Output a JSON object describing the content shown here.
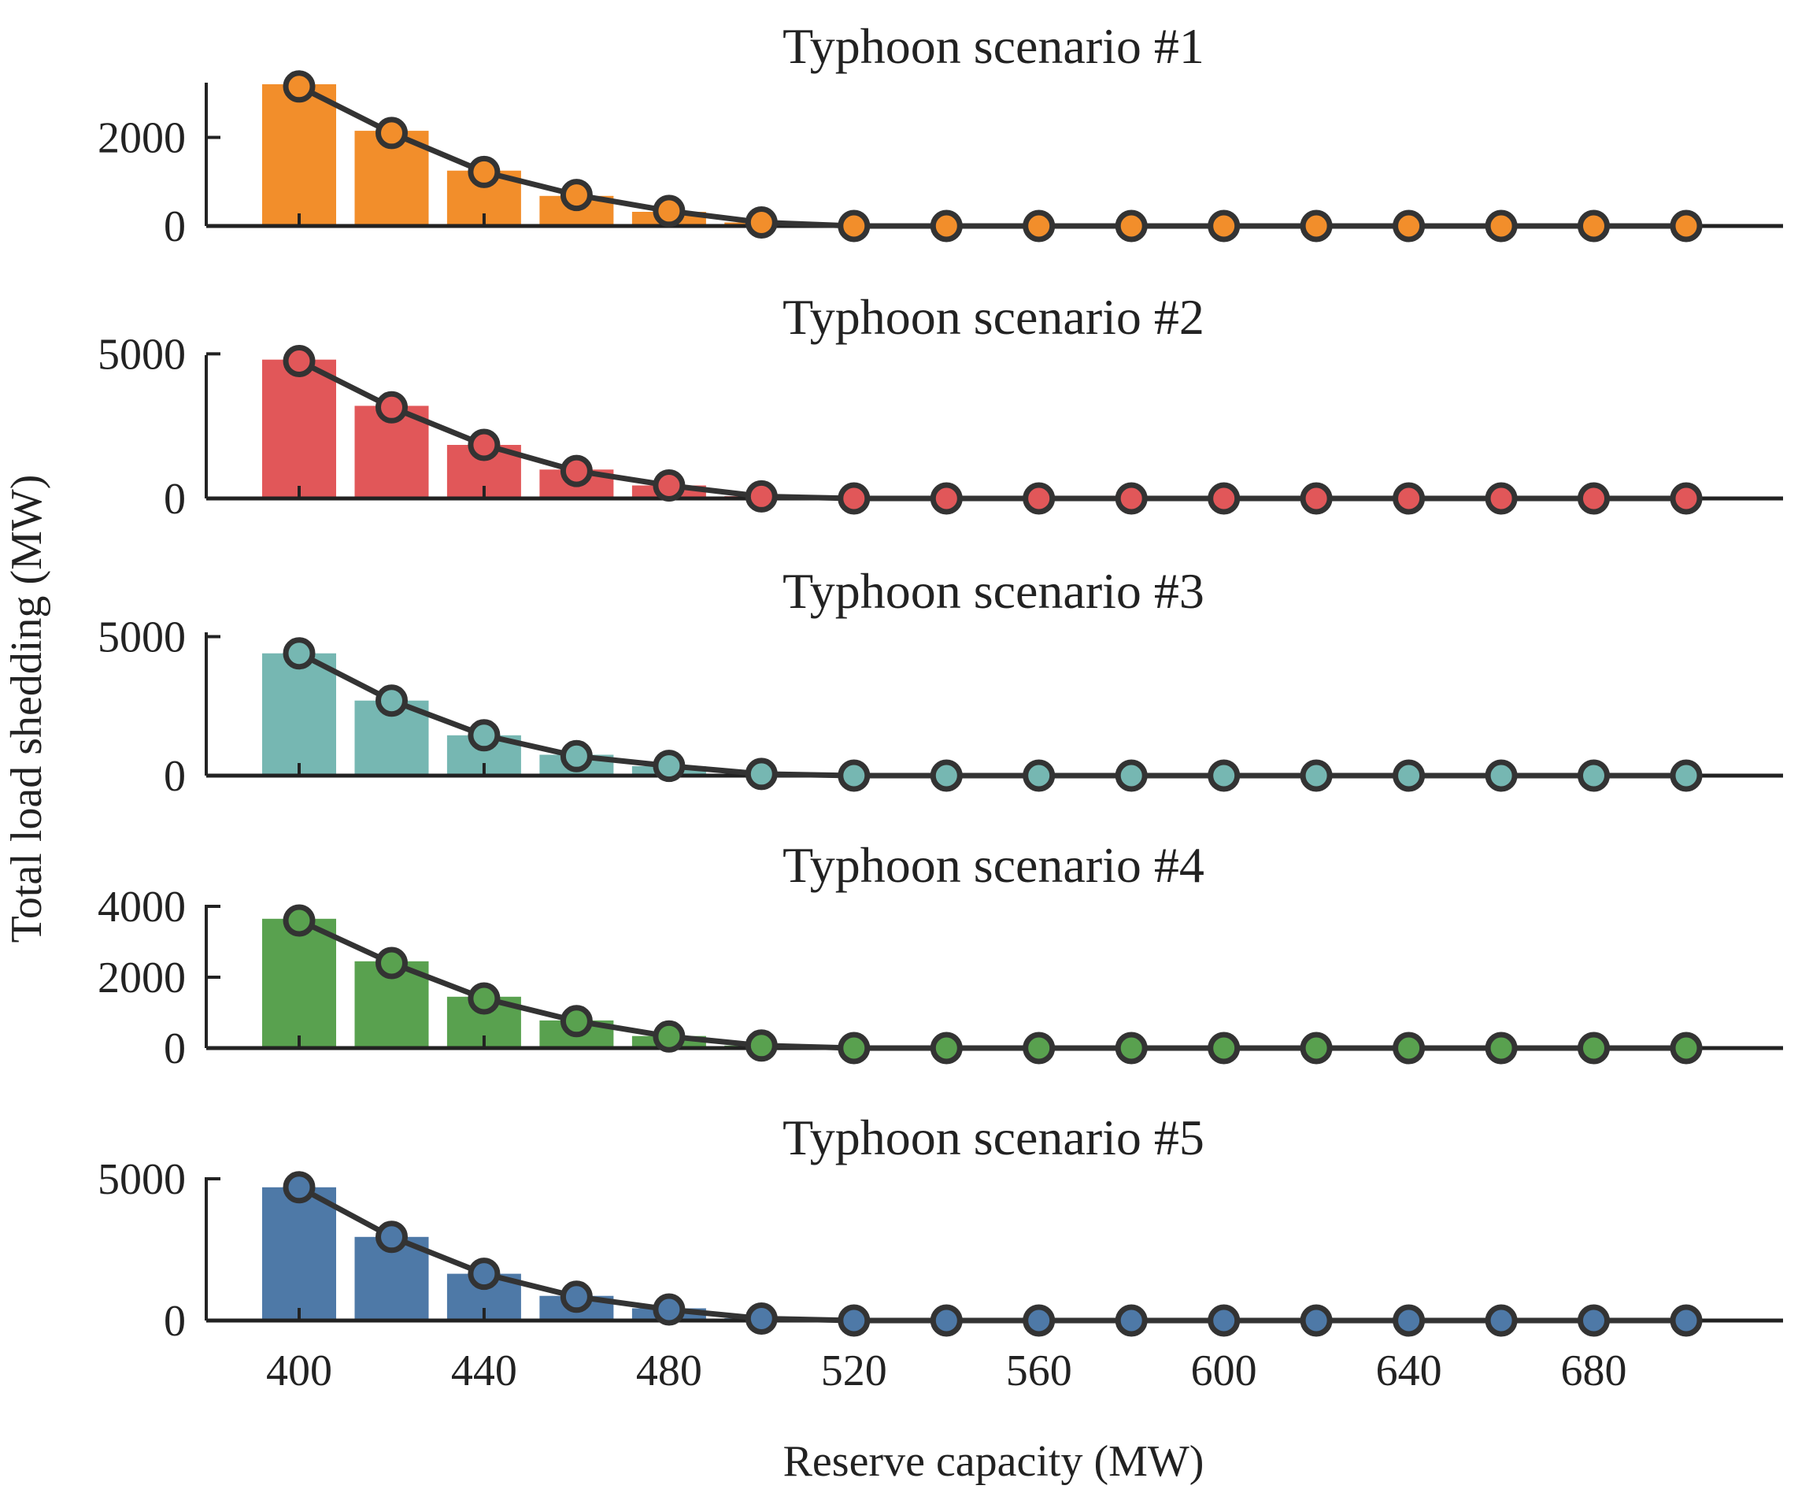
{
  "chart_data": {
    "type": "bar",
    "x_values": [
      400,
      420,
      440,
      460,
      480,
      500,
      520,
      540,
      560,
      580,
      600,
      620,
      640,
      660,
      680,
      700
    ],
    "xlabel": "Reserve capacity (MW)",
    "ylabel": "Total load shedding (MW)",
    "xlim": [
      380,
      715
    ],
    "x_ticks": [
      400,
      440,
      480,
      520,
      560,
      600,
      640,
      680
    ],
    "x_tick_labels": [
      "400",
      "440",
      "480",
      "520",
      "560",
      "600",
      "640",
      "680"
    ],
    "line_color": "#333333",
    "panels": [
      {
        "title": "Typhoon scenario #1",
        "color": "#F28E2B",
        "bar_values": [
          3200,
          2150,
          1250,
          680,
          320,
          80,
          0,
          0,
          0,
          0,
          0,
          0,
          0,
          0,
          0,
          0
        ],
        "line_values": [
          3150,
          2100,
          1220,
          700,
          340,
          80,
          0,
          0,
          0,
          0,
          0,
          0,
          0,
          0,
          0,
          0
        ],
        "ylim": [
          0,
          3200
        ],
        "y_ticks": [
          0,
          2000
        ],
        "y_tick_labels": [
          "0",
          "2000"
        ]
      },
      {
        "title": "Typhoon scenario #2",
        "color": "#E15759",
        "bar_values": [
          4800,
          3200,
          1850,
          1000,
          450,
          80,
          0,
          0,
          0,
          0,
          0,
          0,
          0,
          0,
          0,
          0
        ],
        "line_values": [
          4750,
          3150,
          1850,
          950,
          450,
          70,
          0,
          0,
          0,
          0,
          0,
          0,
          0,
          0,
          0,
          0
        ],
        "ylim": [
          0,
          4900
        ],
        "y_ticks": [
          0,
          5000
        ],
        "y_tick_labels": [
          "0",
          "5000"
        ]
      },
      {
        "title": "Typhoon scenario #3",
        "color": "#76B7B2",
        "bar_values": [
          4400,
          2700,
          1450,
          750,
          340,
          80,
          0,
          0,
          0,
          0,
          0,
          0,
          0,
          0,
          0,
          0
        ],
        "line_values": [
          4400,
          2700,
          1450,
          700,
          350,
          60,
          0,
          0,
          0,
          0,
          0,
          0,
          0,
          0,
          0,
          0
        ],
        "ylim": [
          0,
          5100
        ],
        "y_ticks": [
          0,
          5000
        ],
        "y_tick_labels": [
          "0",
          "5000"
        ]
      },
      {
        "title": "Typhoon scenario #4",
        "color": "#59A14F",
        "bar_values": [
          3650,
          2450,
          1450,
          780,
          340,
          70,
          0,
          0,
          0,
          0,
          0,
          0,
          0,
          0,
          0,
          0
        ],
        "line_values": [
          3600,
          2400,
          1400,
          760,
          330,
          70,
          0,
          0,
          0,
          0,
          0,
          0,
          0,
          0,
          0,
          0
        ],
        "ylim": [
          0,
          4000
        ],
        "y_ticks": [
          0,
          2000,
          4000
        ],
        "y_tick_labels": [
          "0",
          "2000",
          "4000"
        ]
      },
      {
        "title": "Typhoon scenario #5",
        "color": "#4E79A7",
        "bar_values": [
          4700,
          2950,
          1650,
          870,
          430,
          80,
          0,
          0,
          0,
          0,
          0,
          0,
          0,
          0,
          0,
          0
        ],
        "line_values": [
          4700,
          2950,
          1650,
          840,
          390,
          70,
          0,
          0,
          0,
          0,
          0,
          0,
          0,
          0,
          0,
          0
        ],
        "ylim": [
          0,
          5000
        ],
        "y_ticks": [
          0,
          5000
        ],
        "y_tick_labels": [
          "0",
          "5000"
        ]
      }
    ]
  }
}
